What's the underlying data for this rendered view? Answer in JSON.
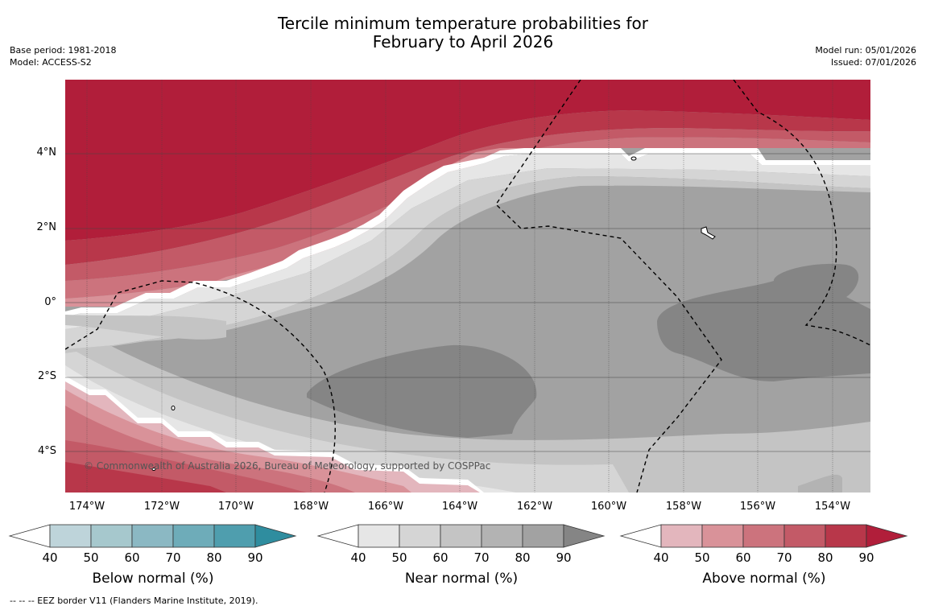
{
  "title": {
    "line1": "Tercile minimum temperature probabilities for",
    "line2": "February to April 2026"
  },
  "meta_left": {
    "base_period": "Base period: 1981-2018",
    "model": "Model: ACCESS-S2"
  },
  "meta_right": {
    "model_run": "Model run: 05/01/2026",
    "issued": "Issued: 07/01/2026"
  },
  "map": {
    "lat_labels": [
      "4°N",
      "2°N",
      "0°",
      "2°S",
      "4°S"
    ],
    "lon_labels": [
      "174°W",
      "172°W",
      "170°W",
      "168°W",
      "166°W",
      "164°W",
      "162°W",
      "160°W",
      "158°W",
      "156°W",
      "154°W"
    ],
    "copyright": "© Commonwealth of Australia 2026, Bureau of Meteorology, supported by COSPPac"
  },
  "colorbars": [
    {
      "title": "Below normal (%)",
      "ticks": [
        "40",
        "50",
        "60",
        "70",
        "80",
        "90"
      ],
      "colors": [
        "#ffffff",
        "#bed4da",
        "#a6c8cd",
        "#8bb8c3",
        "#6eacb9",
        "#4f9eae",
        "#2f8d9f"
      ]
    },
    {
      "title": "Near normal (%)",
      "ticks": [
        "40",
        "50",
        "60",
        "70",
        "80",
        "90"
      ],
      "colors": [
        "#ffffff",
        "#e6e6e6",
        "#d5d5d5",
        "#c4c4c4",
        "#b3b3b3",
        "#a2a2a2",
        "#858585"
      ]
    },
    {
      "title": "Above normal (%)",
      "ticks": [
        "40",
        "50",
        "60",
        "70",
        "80",
        "90"
      ],
      "colors": [
        "#ffffff",
        "#e3b6bd",
        "#d99299",
        "#cc737d",
        "#c35a67",
        "#b8374a",
        "#b11e3a"
      ]
    }
  ],
  "footnote": "-- -- -- EEZ border V11 (Flanders Marine Institute, 2019)."
}
